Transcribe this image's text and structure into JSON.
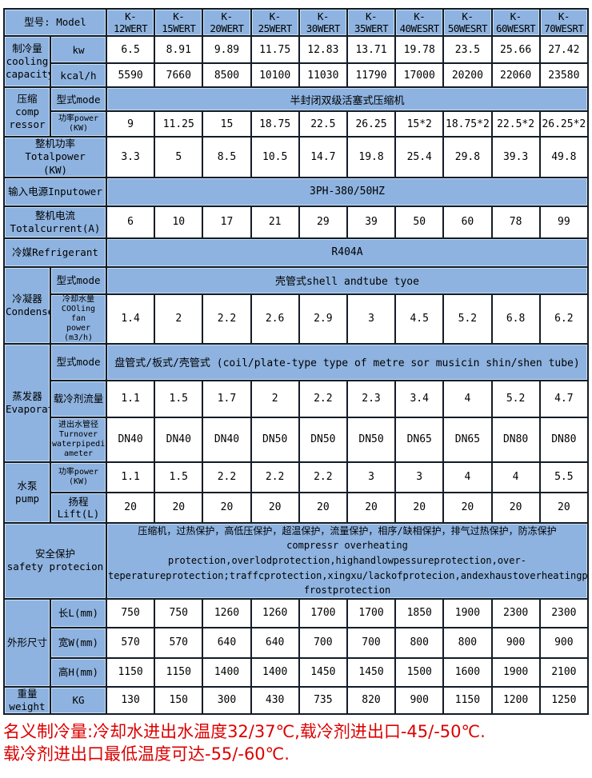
{
  "colors": {
    "cell_blue": "#8eb3e0",
    "border_dark": "#131c26",
    "value_text": "#000000",
    "footnote_red": "#dd0000"
  },
  "table": {
    "rows": [
      {
        "label2": "型号: Model",
        "models": [
          "K-12WERT",
          "K-15WERT",
          "K-20WERT",
          "K-25WERT",
          "K-30WERT",
          "K-35WERT",
          "K-40WESRT",
          "K-50WESRT",
          "K-60WESRT",
          "K-70WESRT"
        ]
      },
      {
        "section": {
          "text": "制冷量\ncooling\ncapacity",
          "rowspan": 2
        },
        "sub": "kw",
        "values": [
          "6.5",
          "8.91",
          "9.89",
          "11.75",
          "12.83",
          "13.71",
          "19.78",
          "23.5",
          "25.66",
          "27.42"
        ]
      },
      {
        "sub": "kcal/h",
        "values": [
          "5590",
          "7660",
          "8500",
          "10100",
          "11030",
          "11790",
          "17000",
          "20200",
          "22060",
          "23580"
        ]
      },
      {
        "section": {
          "text": "压缩\ncomp\nressor",
          "rowspan": 2
        },
        "sub": "型式mode",
        "merged": "半封闭双级活塞式压缩机"
      },
      {
        "sub": "功率power\n(KW)",
        "small": true,
        "values": [
          "9",
          "11.25",
          "15",
          "18.75",
          "22.5",
          "26.25",
          "15*2",
          "18.75*2",
          "22.5*2",
          "26.25*2"
        ]
      },
      {
        "label2": "整机功率\nTotalpower\n(KW)",
        "values": [
          "3.3",
          "5",
          "8.5",
          "10.5",
          "14.7",
          "19.8",
          "25.4",
          "29.8",
          "39.3",
          "49.8"
        ]
      },
      {
        "label2": "输入电源Inputower",
        "merged": "3PH-380/50HZ"
      },
      {
        "label2": "整机电流Totalcurrent(A)",
        "values": [
          "6",
          "10",
          "17",
          "21",
          "29",
          "39",
          "50",
          "60",
          "78",
          "99"
        ]
      },
      {
        "label2": "冷媒Refrigerant",
        "merged": "R404A"
      },
      {
        "section": {
          "text": "冷凝器\nCondenser",
          "rowspan": 2
        },
        "sub": "型式mode",
        "merged": "壳管式shell andtube tyoe"
      },
      {
        "sub": "冷却水量\nCOOling fan\npower (m3/h)",
        "small": true,
        "values": [
          "1.4",
          "2",
          "2.2",
          "2.6",
          "2.9",
          "3",
          "4.5",
          "5.2",
          "6.8",
          "6.2"
        ]
      },
      {
        "section": {
          "text": "蒸发器\nEvaporator",
          "rowspan": 3
        },
        "sub": "型式mode",
        "merged": "盘管式/板式/壳管式 (coil/plate-type type of metre sor musicin shin/shen tube)"
      },
      {
        "sub": "载冷剂流量",
        "values": [
          "1.1",
          "1.5",
          "1.7",
          "2",
          "2.2",
          "2.3",
          "3.4",
          "4",
          "5.2",
          "4.7"
        ]
      },
      {
        "sub": "进出水管径\nTurnover\nwaterpipedi\nameter",
        "small": true,
        "values": [
          "DN40",
          "DN40",
          "DN40",
          "DN50",
          "DN50",
          "DN50",
          "DN65",
          "DN65",
          "DN80",
          "DN80"
        ]
      },
      {
        "section": {
          "text": "水泵　pump",
          "rowspan": 2
        },
        "sub": "功率power (KW)",
        "small": true,
        "values": [
          "1.1",
          "1.5",
          "2.2",
          "2.2",
          "2.2",
          "3",
          "3",
          "4",
          "4",
          "5.5"
        ]
      },
      {
        "sub": "扬程Lift(L)",
        "values": [
          "20",
          "20",
          "20",
          "20",
          "20",
          "20",
          "20",
          "20",
          "20",
          "20"
        ]
      },
      {
        "label2": "安全保护\nsafety protecion",
        "merged": "压缩机，过热保护，高低压保护，超温保护，流量保护，相序/缺相保护，排气过热保护，防冻保护\ncompressr overheating protection,overlodprotection,highandlowpessureprotection,over-\nteperatureprotection;traffcprotection,xingxu/lackofprotecion,andexhaustoverheatingproteion,\nfrostprotection"
      },
      {
        "section": {
          "text": "外形尺寸",
          "rowspan": 3
        },
        "sub": "长L(mm)",
        "values": [
          "750",
          "750",
          "1260",
          "1260",
          "1700",
          "1700",
          "1850",
          "1900",
          "2300",
          "2300"
        ]
      },
      {
        "sub": "宽W(mm)",
        "values": [
          "570",
          "570",
          "640",
          "640",
          "700",
          "700",
          "800",
          "800",
          "900",
          "900"
        ]
      },
      {
        "sub": "高H(mm)",
        "values": [
          "1150",
          "1150",
          "1400",
          "1400",
          "1450",
          "1450",
          "1500",
          "1600",
          "1900",
          "2100"
        ]
      },
      {
        "section": {
          "text": "重量weight",
          "rowspan": 1
        },
        "sub": "KG",
        "values": [
          "130",
          "150",
          "300",
          "430",
          "735",
          "820",
          "900",
          "1150",
          "1200",
          "1250"
        ]
      }
    ]
  },
  "footnote": {
    "line1": "名义制冷量:冷却水进出水温度32/37℃,载冷剂进出口-45/-50℃.",
    "line2": "载冷剂进出口最低温度可达-55/-60℃."
  }
}
